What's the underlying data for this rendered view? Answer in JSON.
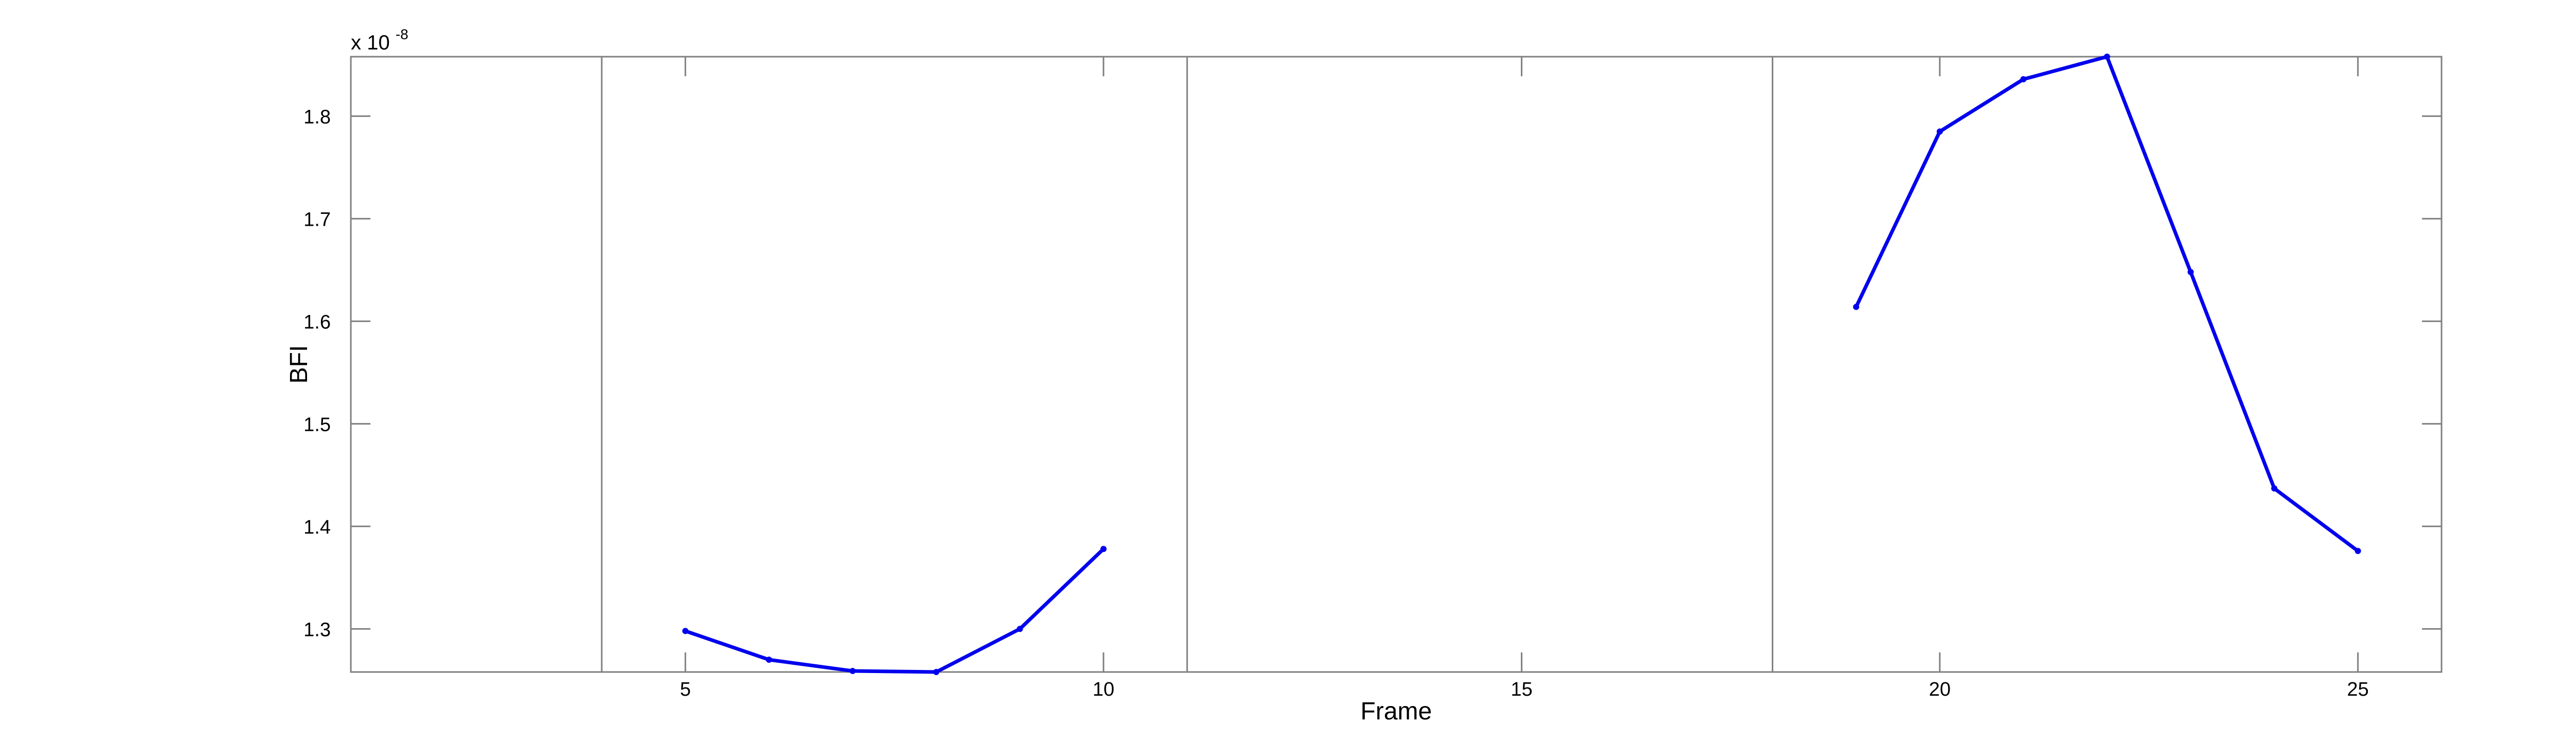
{
  "chart_data": {
    "type": "line",
    "title": "",
    "xlabel": "Frame",
    "ylabel": "BFI",
    "y_multiplier": "x 10",
    "y_exponent": "-8",
    "xlim": [
      1,
      26
    ],
    "ylim": [
      1.258,
      1.858
    ],
    "x_ticks": [
      5,
      10,
      15,
      20,
      25
    ],
    "x_tick_labels": [
      "5",
      "10",
      "15",
      "20",
      "25"
    ],
    "y_ticks": [
      1.3,
      1.4,
      1.5,
      1.6,
      1.7,
      1.8
    ],
    "y_tick_labels": [
      "1.3",
      "1.4",
      "1.5",
      "1.6",
      "1.7",
      "1.8"
    ],
    "grid": false,
    "vertical_lines_x": [
      4,
      11,
      18
    ],
    "line_color": "#0000ee",
    "axis_color": "#808080",
    "series": [
      {
        "segments": [
          {
            "x": [
              5,
              6,
              7,
              8,
              9,
              10
            ],
            "y": [
              1.298,
              1.27,
              1.259,
              1.258,
              1.3,
              1.378
            ]
          },
          {
            "x": [
              19,
              20,
              21,
              22,
              23,
              24,
              25
            ],
            "y": [
              1.614,
              1.785,
              1.836,
              1.858,
              1.648,
              1.437,
              1.376
            ]
          }
        ]
      }
    ]
  }
}
